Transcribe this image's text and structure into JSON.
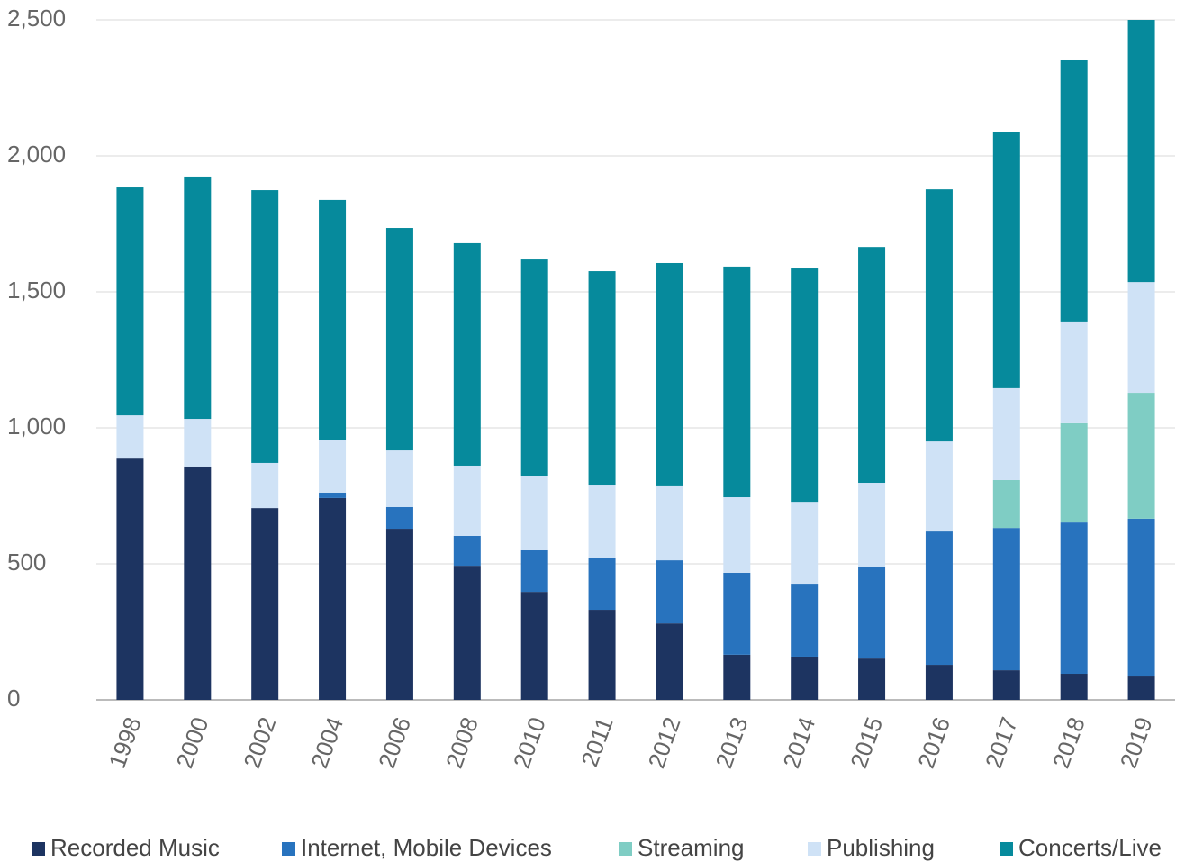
{
  "chart_data": {
    "type": "stacked_bar",
    "categories": [
      "1998",
      "2000",
      "2002",
      "2004",
      "2006",
      "2008",
      "2010",
      "2011",
      "2012",
      "2013",
      "2014",
      "2015",
      "2016",
      "2017",
      "2018",
      "2019"
    ],
    "series": [
      {
        "name": "Recorded Music",
        "color": "#1d3461",
        "values": [
          887,
          858,
          705,
          742,
          629,
          493,
          397,
          331,
          281,
          166,
          159,
          152,
          129,
          109,
          96,
          86
        ]
      },
      {
        "name": "Internet, Mobile Devices",
        "color": "#2873be",
        "values": [
          0,
          0,
          0,
          20,
          80,
          110,
          153,
          189,
          232,
          301,
          268,
          338,
          490,
          523,
          556,
          580
        ]
      },
      {
        "name": "Streaming",
        "color": "#7fcdc4",
        "values": [
          0,
          0,
          0,
          0,
          0,
          0,
          0,
          0,
          0,
          0,
          0,
          0,
          0,
          176,
          365,
          463
        ]
      },
      {
        "name": "Publishing",
        "color": "#cfe2f6",
        "values": [
          159,
          175,
          166,
          192,
          208,
          258,
          274,
          268,
          272,
          278,
          301,
          308,
          331,
          338,
          374,
          407
        ]
      },
      {
        "name": "Concerts/Live",
        "color": "#068a9c",
        "values": [
          838,
          891,
          1003,
          884,
          818,
          818,
          795,
          788,
          821,
          848,
          858,
          867,
          927,
          943,
          960,
          964
        ]
      }
    ],
    "ylim": [
      0,
      2500
    ],
    "yticks": [
      0,
      500,
      {
        "value": 1000,
        "label": "1,000"
      },
      {
        "value": 1500,
        "label": "1,500"
      },
      {
        "value": 2000,
        "label": "2,000"
      },
      {
        "value": 2500,
        "label": "2,500"
      }
    ],
    "grid": true,
    "legend": "bottom"
  }
}
